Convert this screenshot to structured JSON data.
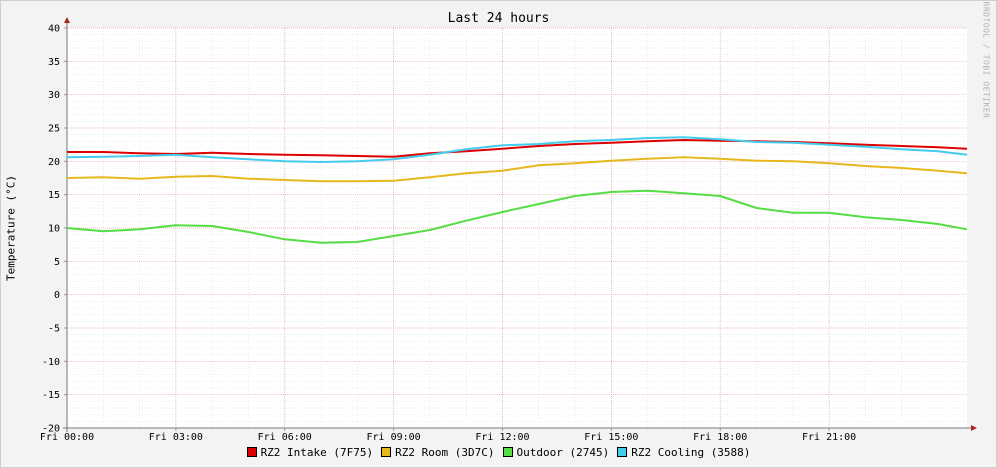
{
  "chart_data": {
    "type": "line",
    "title": "Last 24 hours",
    "ylabel": "Temperature (°C)",
    "xlabel": "",
    "ylim": [
      -20,
      40
    ],
    "yticks": [
      40,
      35,
      30,
      25,
      20,
      15,
      10,
      5,
      0,
      -5,
      -10,
      -15,
      -20
    ],
    "xlim": [
      0,
      24.8
    ],
    "x_tick_labels": [
      "Fri 00:00",
      "Fri 03:00",
      "Fri 06:00",
      "Fri 09:00",
      "Fri 12:00",
      "Fri 15:00",
      "Fri 18:00",
      "Fri 21:00"
    ],
    "grid": true,
    "legend_position": "bottom",
    "x": [
      0,
      1,
      2,
      3,
      4,
      5,
      6,
      7,
      8,
      9,
      10,
      11,
      12,
      13,
      14,
      15,
      16,
      17,
      18,
      19,
      20,
      21,
      22,
      23,
      24,
      24.8
    ],
    "series": [
      {
        "name": "RZ2 Intake (7F75)",
        "color": "#dd0000",
        "values": [
          21.4,
          21.4,
          21.2,
          21.1,
          21.3,
          21.1,
          21.0,
          20.9,
          20.8,
          20.7,
          21.2,
          21.5,
          21.9,
          22.3,
          22.6,
          22.8,
          23.0,
          23.2,
          23.1,
          23.0,
          22.9,
          22.7,
          22.5,
          22.3,
          22.1,
          21.9
        ]
      },
      {
        "name": "RZ2 Room (3D7C)",
        "color": "#e6b81e",
        "values": [
          17.5,
          17.6,
          17.4,
          17.7,
          17.8,
          17.4,
          17.2,
          17.0,
          17.0,
          17.1,
          17.6,
          18.2,
          18.6,
          19.4,
          19.7,
          20.1,
          20.4,
          20.6,
          20.4,
          20.1,
          20.0,
          19.7,
          19.3,
          19.0,
          18.6,
          18.2
        ]
      },
      {
        "name": "Outdoor (2745)",
        "color": "#55dd44",
        "values": [
          10.0,
          9.5,
          9.8,
          10.4,
          10.3,
          9.4,
          8.3,
          7.8,
          7.9,
          8.8,
          9.7,
          11.1,
          12.4,
          13.6,
          14.8,
          15.4,
          15.6,
          15.2,
          14.8,
          13.0,
          12.3,
          12.3,
          11.6,
          11.2,
          10.6,
          9.8
        ]
      },
      {
        "name": "RZ2 Cooling (3588)",
        "color": "#44ccee",
        "values": [
          20.6,
          20.7,
          20.8,
          21.0,
          20.6,
          20.3,
          20.0,
          19.9,
          20.0,
          20.3,
          21.0,
          21.8,
          22.4,
          22.6,
          23.0,
          23.2,
          23.5,
          23.6,
          23.3,
          22.9,
          22.8,
          22.5,
          22.2,
          21.8,
          21.5,
          21.0
        ]
      }
    ]
  },
  "watermark": "RRDTOOL / TOBI OETIKER"
}
